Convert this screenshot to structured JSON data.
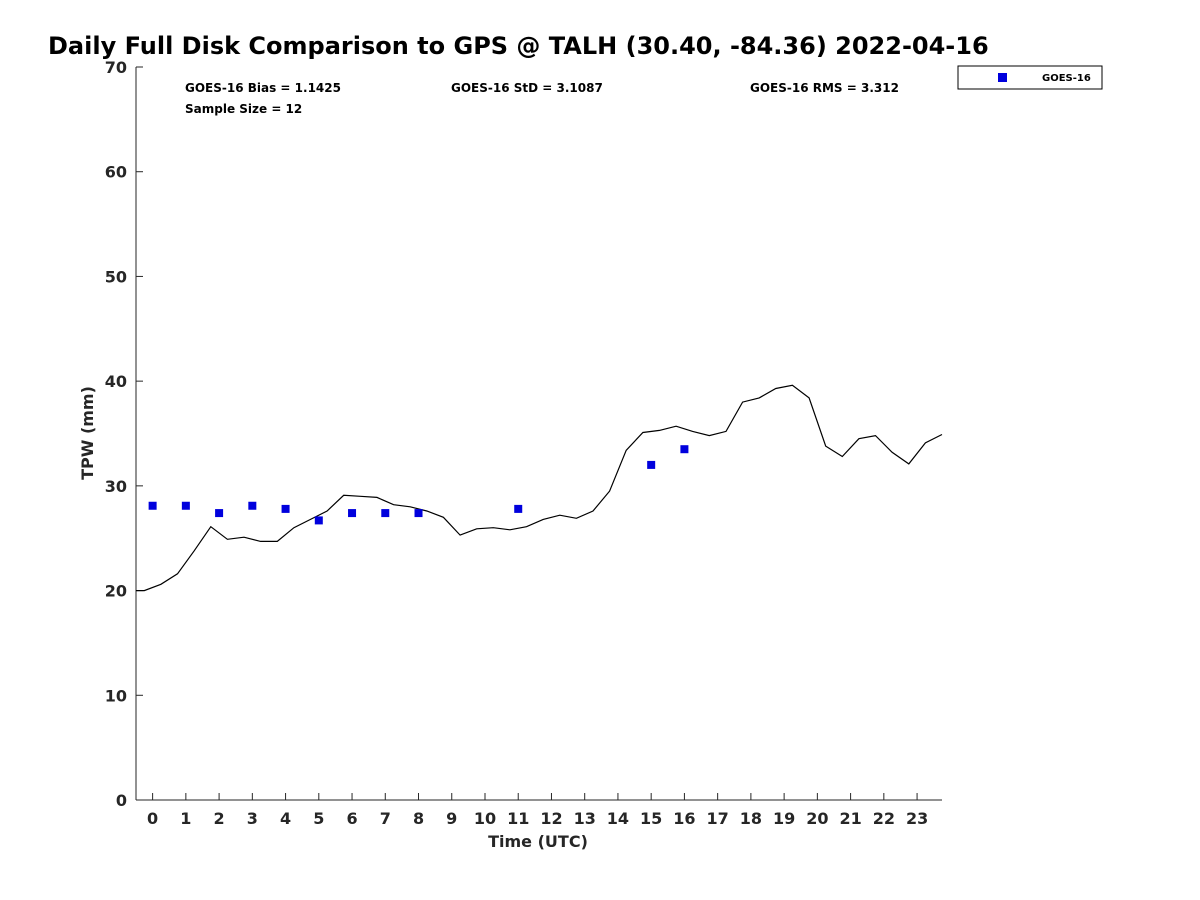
{
  "chart_data": {
    "type": "scatter",
    "title": "Daily Full Disk Comparison to GPS @ TALH (30.40, -84.36) 2022-04-16",
    "xlabel": "Time (UTC)",
    "ylabel": "TPW (mm)",
    "xlim": [
      -0.5,
      23.75
    ],
    "ylim": [
      0,
      70
    ],
    "x_ticks": [
      0,
      1,
      2,
      3,
      4,
      5,
      6,
      7,
      8,
      9,
      10,
      11,
      12,
      13,
      14,
      15,
      16,
      17,
      18,
      19,
      20,
      21,
      22,
      23
    ],
    "y_ticks": [
      0,
      10,
      20,
      30,
      40,
      50,
      60,
      70
    ],
    "grid": false,
    "legend_position": "top-right",
    "stats": {
      "bias": "GOES-16 Bias = 1.1425",
      "std": "GOES-16 StD = 3.1087",
      "rms": "GOES-16 RMS = 3.312",
      "sample_size": "Sample Size = 12"
    },
    "series": [
      {
        "name": "GOES-16",
        "type": "scatter",
        "color": "#0000dd",
        "marker": "square",
        "x": [
          0,
          1,
          2,
          3,
          4,
          5,
          6,
          7,
          8,
          11,
          15,
          16
        ],
        "y": [
          28.1,
          28.1,
          27.4,
          28.1,
          27.8,
          26.7,
          27.4,
          27.4,
          27.4,
          27.8,
          32.0,
          33.5
        ]
      },
      {
        "type": "line",
        "color": "#000000",
        "x": [
          -0.5,
          -0.25,
          0.25,
          0.75,
          1.25,
          1.75,
          2.25,
          2.75,
          3.25,
          3.75,
          4.25,
          4.75,
          5.25,
          5.75,
          6.25,
          6.75,
          7.25,
          7.75,
          8.25,
          8.75,
          9.25,
          9.75,
          10.25,
          10.75,
          11.25,
          11.75,
          12.25,
          12.75,
          13.25,
          13.75,
          14.25,
          14.75,
          15.25,
          15.75,
          16.25,
          16.75,
          17.25,
          17.75,
          18.25,
          18.75,
          19.25,
          19.75,
          20.25,
          20.75,
          21.25,
          21.75,
          22.25,
          22.75,
          23.25,
          23.75
        ],
        "y": [
          20.0,
          20.0,
          20.6,
          21.6,
          23.8,
          26.1,
          24.9,
          25.1,
          24.7,
          24.7,
          26.0,
          26.8,
          27.6,
          29.1,
          29.0,
          28.9,
          28.2,
          28.0,
          27.6,
          27.0,
          25.3,
          25.9,
          26.0,
          25.8,
          26.1,
          26.8,
          27.2,
          26.9,
          27.6,
          29.5,
          33.4,
          35.1,
          35.3,
          35.7,
          35.2,
          34.8,
          35.2,
          38.0,
          38.4,
          39.3,
          39.6,
          38.4,
          33.8,
          32.8,
          34.5,
          34.8,
          33.2,
          32.1,
          34.1,
          34.9
        ]
      }
    ]
  }
}
